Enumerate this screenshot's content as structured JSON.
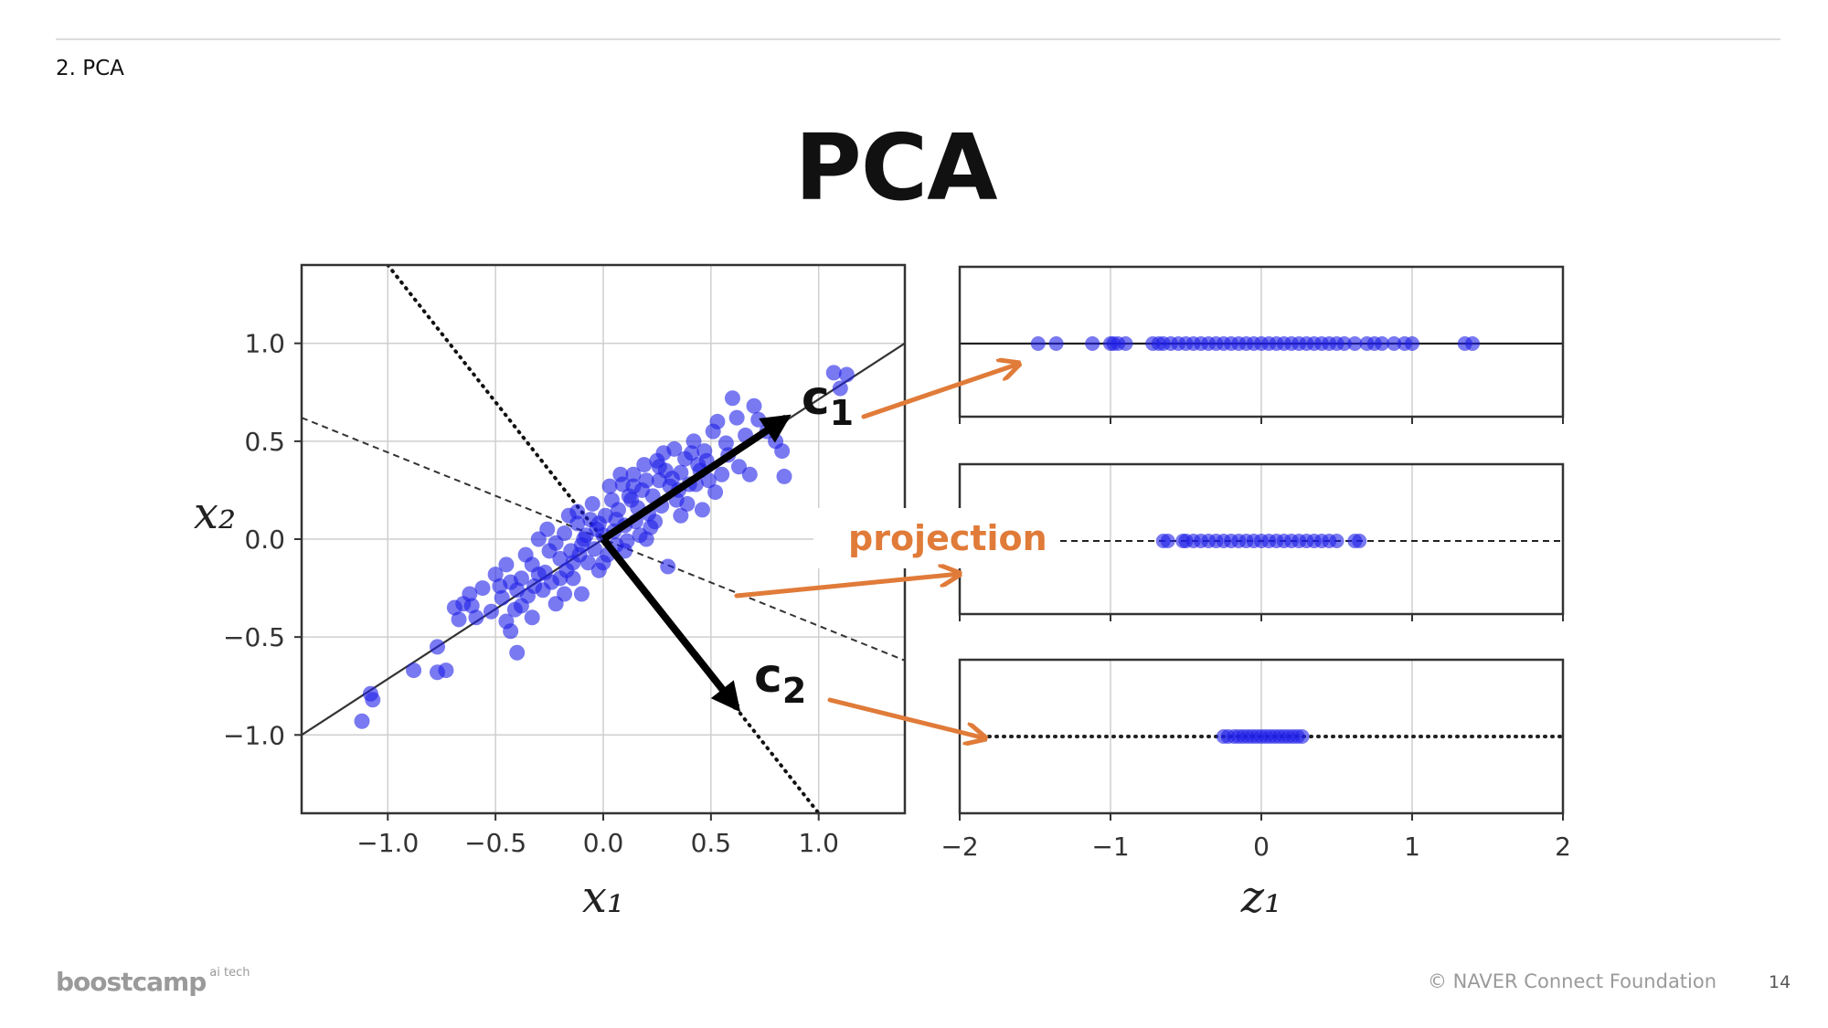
{
  "slide": {
    "section": "2. PCA",
    "title": "PCA",
    "footer_logo": "boostcamp",
    "footer_logo_sup": "ai tech",
    "footer_copyright": "© NAVER Connect Foundation",
    "page_number": "14"
  },
  "colors": {
    "points": "#1f1fe8",
    "arrow_annotation": "#e07b39",
    "axes": "#333333",
    "grid": "#cfcfcf"
  },
  "chart_data": [
    {
      "type": "scatter",
      "xlabel": "x₁",
      "ylabel": "x₂",
      "xlim": [
        -1.4,
        1.4
      ],
      "ylim": [
        -1.4,
        1.4
      ],
      "xticks": [
        -1.0,
        -0.5,
        0.0,
        0.5,
        1.0
      ],
      "xticklabels": [
        "−1.0",
        "−0.5",
        "0.0",
        "0.5",
        "1.0"
      ],
      "yticks": [
        1.0,
        0.5,
        0.0,
        -0.5,
        -1.0
      ],
      "yticklabels": [
        "1.0",
        "0.5",
        "0.0",
        "−0.5",
        "−1.0"
      ],
      "grid": true,
      "lines": [
        {
          "style": "solid",
          "x": [
            -1.4,
            1.4
          ],
          "y": [
            -1.0,
            1.0
          ]
        },
        {
          "style": "dashed",
          "x": [
            -1.4,
            1.4
          ],
          "y": [
            0.62,
            -0.62
          ]
        },
        {
          "style": "dotted",
          "x": [
            -1.0,
            1.0
          ],
          "y": [
            1.4,
            -1.4
          ]
        }
      ],
      "vectors": [
        {
          "label": "c",
          "subscript": "1",
          "x": [
            0,
            0.85
          ],
          "y": [
            0,
            0.62
          ]
        },
        {
          "label": "c",
          "subscript": "2",
          "x": [
            0,
            0.62
          ],
          "y": [
            0,
            -0.86
          ]
        }
      ],
      "points": [
        [
          -1.12,
          -0.93
        ],
        [
          -1.07,
          -0.82
        ],
        [
          -1.08,
          -0.79
        ],
        [
          -0.88,
          -0.67
        ],
        [
          -0.77,
          -0.68
        ],
        [
          -0.73,
          -0.67
        ],
        [
          -0.77,
          -0.55
        ],
        [
          -0.67,
          -0.41
        ],
        [
          -0.69,
          -0.35
        ],
        [
          -0.65,
          -0.33
        ],
        [
          -0.61,
          -0.34
        ],
        [
          -0.59,
          -0.4
        ],
        [
          -0.52,
          -0.37
        ],
        [
          -0.47,
          -0.3
        ],
        [
          -0.45,
          -0.42
        ],
        [
          -0.43,
          -0.47
        ],
        [
          -0.4,
          -0.58
        ],
        [
          -0.43,
          -0.22
        ],
        [
          -0.4,
          -0.26
        ],
        [
          -0.38,
          -0.2
        ],
        [
          -0.35,
          -0.29
        ],
        [
          -0.33,
          -0.13
        ],
        [
          -0.33,
          -0.4
        ],
        [
          -0.3,
          -0.18
        ],
        [
          -0.28,
          -0.26
        ],
        [
          -0.25,
          -0.06
        ],
        [
          -0.24,
          -0.22
        ],
        [
          -0.22,
          -0.33
        ],
        [
          -0.2,
          -0.1
        ],
        [
          -0.2,
          -0.2
        ],
        [
          -0.18,
          0.03
        ],
        [
          -0.17,
          -0.16
        ],
        [
          -0.15,
          -0.06
        ],
        [
          -0.14,
          -0.2
        ],
        [
          -0.12,
          0.08
        ],
        [
          -0.11,
          -0.08
        ],
        [
          -0.1,
          -0.28
        ],
        [
          -0.08,
          0.02
        ],
        [
          -0.07,
          -0.12
        ],
        [
          -0.06,
          0.1
        ],
        [
          -0.04,
          -0.05
        ],
        [
          -0.03,
          0.05
        ],
        [
          -0.02,
          -0.16
        ],
        [
          0.0,
          0.02
        ],
        [
          0.01,
          0.12
        ],
        [
          0.02,
          -0.08
        ],
        [
          0.04,
          0.2
        ],
        [
          0.05,
          0.04
        ],
        [
          0.06,
          -0.03
        ],
        [
          0.07,
          0.15
        ],
        [
          0.09,
          0.28
        ],
        [
          0.1,
          0.07
        ],
        [
          0.11,
          -0.01
        ],
        [
          0.13,
          0.2
        ],
        [
          0.14,
          0.33
        ],
        [
          0.15,
          0.09
        ],
        [
          0.17,
          0.02
        ],
        [
          0.18,
          0.25
        ],
        [
          0.19,
          0.38
        ],
        [
          0.21,
          0.13
        ],
        [
          0.22,
          0.06
        ],
        [
          0.23,
          0.22
        ],
        [
          0.25,
          0.4
        ],
        [
          0.26,
          0.3
        ],
        [
          0.27,
          0.17
        ],
        [
          0.29,
          0.35
        ],
        [
          0.3,
          -0.14
        ],
        [
          0.31,
          0.27
        ],
        [
          0.33,
          0.46
        ],
        [
          0.34,
          0.2
        ],
        [
          0.36,
          0.34
        ],
        [
          0.38,
          0.41
        ],
        [
          0.4,
          0.28
        ],
        [
          0.42,
          0.5
        ],
        [
          0.44,
          0.38
        ],
        [
          0.46,
          0.15
        ],
        [
          0.47,
          0.45
        ],
        [
          0.49,
          0.3
        ],
        [
          0.51,
          0.55
        ],
        [
          0.53,
          0.6
        ],
        [
          0.57,
          0.49
        ],
        [
          0.6,
          0.72
        ],
        [
          0.63,
          0.37
        ],
        [
          0.66,
          0.53
        ],
        [
          0.68,
          0.33
        ],
        [
          0.72,
          0.61
        ],
        [
          0.76,
          0.55
        ],
        [
          0.8,
          0.5
        ],
        [
          0.83,
          0.45
        ],
        [
          0.84,
          0.32
        ],
        [
          1.07,
          0.85
        ],
        [
          1.1,
          0.77
        ],
        [
          1.13,
          0.84
        ],
        [
          -0.56,
          -0.25
        ],
        [
          -0.5,
          -0.18
        ],
        [
          -0.45,
          -0.13
        ],
        [
          -0.36,
          -0.08
        ],
        [
          -0.3,
          0.0
        ],
        [
          -0.26,
          0.05
        ],
        [
          -0.16,
          0.12
        ],
        [
          -0.12,
          0.14
        ],
        [
          -0.05,
          0.18
        ],
        [
          0.03,
          0.27
        ],
        [
          0.08,
          0.33
        ],
        [
          0.12,
          0.22
        ],
        [
          -0.22,
          -0.02
        ],
        [
          -0.27,
          -0.17
        ],
        [
          -0.1,
          -0.03
        ],
        [
          0.16,
          0.16
        ],
        [
          0.2,
          0.3
        ],
        [
          0.24,
          0.09
        ],
        [
          0.28,
          0.44
        ],
        [
          0.35,
          0.25
        ],
        [
          0.39,
          0.18
        ],
        [
          0.43,
          0.28
        ],
        [
          0.48,
          0.4
        ],
        [
          0.52,
          0.24
        ],
        [
          0.55,
          0.33
        ],
        [
          0.58,
          0.43
        ],
        [
          -0.62,
          -0.28
        ],
        [
          -0.38,
          -0.34
        ],
        [
          0.0,
          -0.12
        ],
        [
          0.1,
          -0.06
        ],
        [
          -0.18,
          -0.28
        ],
        [
          0.62,
          0.62
        ],
        [
          0.7,
          0.68
        ],
        [
          -0.48,
          -0.24
        ],
        [
          -0.41,
          -0.36
        ],
        [
          -0.32,
          -0.24
        ],
        [
          -0.09,
          0.0
        ],
        [
          0.06,
          0.1
        ],
        [
          0.14,
          0.27
        ],
        [
          0.32,
          0.31
        ],
        [
          0.36,
          0.12
        ],
        [
          0.45,
          0.35
        ],
        [
          0.2,
          0.0
        ],
        [
          -0.02,
          0.08
        ],
        [
          -0.14,
          -0.12
        ],
        [
          0.26,
          0.37
        ],
        [
          0.41,
          0.44
        ]
      ]
    },
    {
      "type": "scatter",
      "panel": "projection onto c1",
      "line_style": "solid",
      "points_z1": [
        -1.48,
        -1.36,
        -1.12,
        -1.0,
        -0.98,
        -0.95,
        -0.9,
        -0.72,
        -0.68,
        -0.65,
        -0.6,
        -0.55,
        -0.5,
        -0.45,
        -0.4,
        -0.35,
        -0.3,
        -0.25,
        -0.2,
        -0.15,
        -0.1,
        -0.05,
        0.0,
        0.05,
        0.1,
        0.15,
        0.2,
        0.25,
        0.3,
        0.35,
        0.4,
        0.45,
        0.5,
        0.55,
        0.62,
        0.7,
        0.75,
        0.8,
        0.88,
        0.95,
        1.0,
        1.35,
        1.4
      ]
    },
    {
      "type": "scatter",
      "panel": "projection onto dashed line",
      "line_style": "dashed",
      "points_z1": [
        -0.65,
        -0.62,
        -0.52,
        -0.5,
        -0.45,
        -0.4,
        -0.35,
        -0.3,
        -0.25,
        -0.2,
        -0.15,
        -0.1,
        -0.05,
        0.0,
        0.05,
        0.1,
        0.15,
        0.2,
        0.25,
        0.3,
        0.35,
        0.4,
        0.45,
        0.5,
        0.62,
        0.65
      ],
      "annotation": "projection"
    },
    {
      "type": "scatter",
      "panel": "projection onto c2",
      "line_style": "dotted",
      "xlabel": "z₁",
      "xlim": [
        -2,
        2
      ],
      "xticks": [
        -2,
        -1,
        0,
        1,
        2
      ],
      "xticklabels": [
        "−2",
        "−1",
        "0",
        "1",
        "2"
      ],
      "grid": true,
      "points_z1": [
        -0.25,
        -0.22,
        -0.18,
        -0.15,
        -0.12,
        -0.09,
        -0.06,
        -0.03,
        0.0,
        0.03,
        0.06,
        0.09,
        0.12,
        0.15,
        0.18,
        0.21,
        0.24,
        0.27
      ]
    }
  ]
}
